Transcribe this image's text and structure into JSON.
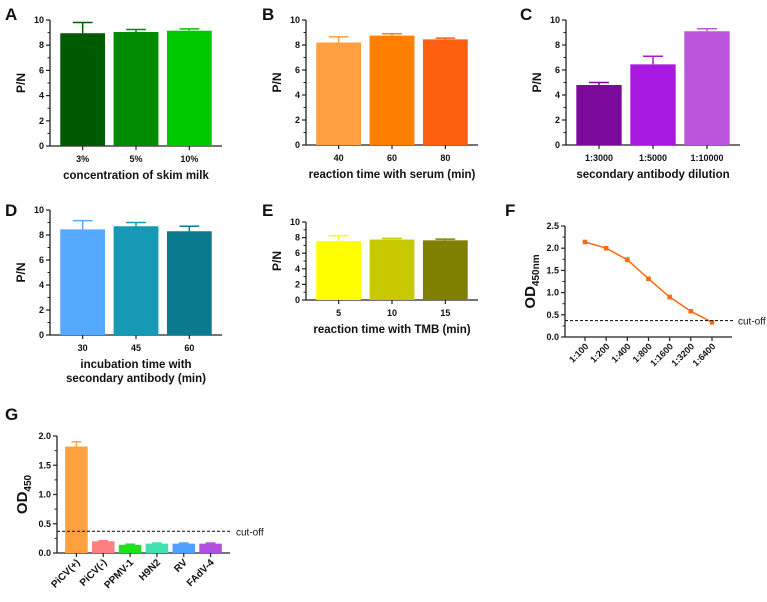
{
  "chart_data": [
    {
      "id": "A",
      "type": "bar",
      "panel_label": "A",
      "categories": [
        "3%",
        "5%",
        "10%"
      ],
      "values": [
        8.95,
        9.05,
        9.15
      ],
      "errors": [
        0.85,
        0.2,
        0.15
      ],
      "colors": [
        "#005a00",
        "#008a00",
        "#00c800"
      ],
      "xlabel": [
        "concentration of skim milk"
      ],
      "ylabel": "P/N",
      "ylim": [
        0,
        10
      ],
      "yticks": [
        0,
        2,
        4,
        6,
        8,
        10
      ]
    },
    {
      "id": "B",
      "type": "bar",
      "panel_label": "B",
      "categories": [
        "40",
        "60",
        "80"
      ],
      "values": [
        8.2,
        8.75,
        8.45
      ],
      "errors": [
        0.45,
        0.15,
        0.1
      ],
      "colors": [
        "#ffa040",
        "#ff8000",
        "#ff6010"
      ],
      "xlabel": [
        "reaction time with serum (min)"
      ],
      "ylabel": "P/N",
      "ylim": [
        0,
        10
      ],
      "yticks": [
        0,
        2,
        4,
        6,
        8,
        10
      ]
    },
    {
      "id": "C",
      "type": "bar",
      "panel_label": "C",
      "categories": [
        "1:3000",
        "1:5000",
        "1:10000"
      ],
      "values": [
        4.8,
        6.45,
        9.1
      ],
      "errors": [
        0.2,
        0.65,
        0.2
      ],
      "colors": [
        "#7b0a9a",
        "#a818e0",
        "#bb55dd"
      ],
      "xlabel": [
        "secondary antibody dilution"
      ],
      "ylabel": "P/N",
      "ylim": [
        0,
        10
      ],
      "yticks": [
        0,
        2,
        4,
        6,
        8,
        10
      ]
    },
    {
      "id": "D",
      "type": "bar",
      "panel_label": "D",
      "categories": [
        "30",
        "45",
        "60"
      ],
      "values": [
        8.45,
        8.7,
        8.3
      ],
      "errors": [
        0.7,
        0.3,
        0.4
      ],
      "colors": [
        "#55aaff",
        "#1599b5",
        "#0a7a90"
      ],
      "xlabel": [
        "incubation time with",
        "secondary antibody (min)"
      ],
      "ylabel": "P/N",
      "ylim": [
        0,
        10
      ],
      "yticks": [
        0,
        2,
        4,
        6,
        8,
        10
      ]
    },
    {
      "id": "E",
      "type": "bar",
      "panel_label": "E",
      "categories": [
        "5",
        "10",
        "15"
      ],
      "values": [
        7.55,
        7.75,
        7.65
      ],
      "errors": [
        0.7,
        0.15,
        0.15
      ],
      "colors": [
        "#ffff00",
        "#c8c800",
        "#808000"
      ],
      "xlabel": [
        "reaction time with TMB (min)"
      ],
      "ylabel": "P/N",
      "ylim": [
        0,
        10
      ],
      "yticks": [
        0,
        2,
        4,
        6,
        8,
        10
      ]
    },
    {
      "id": "F",
      "type": "line",
      "panel_label": "F",
      "categories": [
        "1:100",
        "1:200",
        "1:400",
        "1:800",
        "1:1600",
        "1:3200",
        "1:6400"
      ],
      "values": [
        2.14,
        2.0,
        1.74,
        1.31,
        0.9,
        0.58,
        0.33
      ],
      "errors": [
        0.03,
        0.05,
        0.06,
        0.02,
        0.02,
        0.02,
        0.02
      ],
      "colors": [
        "#ff6a10"
      ],
      "xlabel": [],
      "ylabel": "OD",
      "ylabel_sub": "450nm",
      "ylim": [
        0,
        2.5
      ],
      "yticks": [
        0.0,
        0.5,
        1.0,
        1.5,
        2.0,
        2.5
      ],
      "cutoff": 0.37,
      "cutoff_label": "cut-off"
    },
    {
      "id": "G",
      "type": "bar",
      "panel_label": "G",
      "categories": [
        "PiCV(+)",
        "PiCV(-)",
        "PPMV-1",
        "H9N2",
        "RV",
        "FAdV-4"
      ],
      "values": [
        1.82,
        0.2,
        0.14,
        0.16,
        0.16,
        0.16
      ],
      "errors": [
        0.08,
        0.01,
        0.01,
        0.01,
        0.01,
        0.01
      ],
      "colors": [
        "#ffa040",
        "#ff8080",
        "#20e020",
        "#40e0b0",
        "#50a0ff",
        "#b050e0"
      ],
      "xlabel": [],
      "ylabel": "OD",
      "ylabel_sub": "450",
      "ylim": [
        0,
        2.0
      ],
      "yticks": [
        0.0,
        0.5,
        1.0,
        1.5,
        2.0
      ],
      "cutoff": 0.37,
      "cutoff_label": "cut-off"
    }
  ]
}
